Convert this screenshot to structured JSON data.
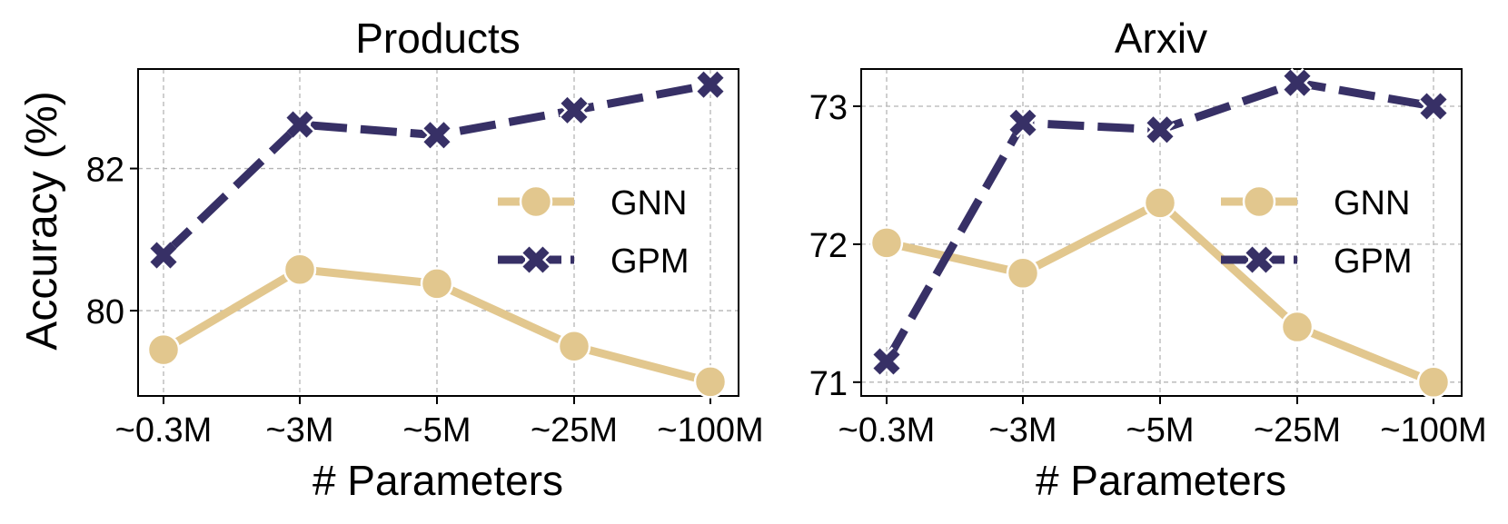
{
  "figure": {
    "ylabel": "Accuracy (%)"
  },
  "colors": {
    "gnn": "#e2c78e",
    "gpm": "#373066",
    "grid": "#b5b5b5",
    "axis": "#000000"
  },
  "chart_data": [
    {
      "type": "line",
      "title": "Products",
      "xlabel": "# Parameters",
      "ylabel": "Accuracy (%)",
      "categories": [
        "~0.3M",
        "~3M",
        "~5M",
        "~25M",
        "~100M"
      ],
      "ylim": [
        78.8,
        83.4
      ],
      "yticks": [
        80,
        82
      ],
      "ytick_labels": [
        "80",
        "82"
      ],
      "grid": true,
      "legend": "center-right",
      "series": [
        {
          "name": "GNN",
          "marker": "circle",
          "linestyle": "solid",
          "values": [
            79.45,
            80.58,
            80.38,
            79.5,
            79.0
          ]
        },
        {
          "name": "GPM",
          "marker": "x",
          "linestyle": "dashed",
          "values": [
            80.78,
            82.62,
            82.47,
            82.82,
            83.18
          ]
        }
      ]
    },
    {
      "type": "line",
      "title": "Arxiv",
      "xlabel": "# Parameters",
      "ylabel": "",
      "categories": [
        "~0.3M",
        "~3M",
        "~5M",
        "~25M",
        "~100M"
      ],
      "ylim": [
        70.9,
        73.27
      ],
      "yticks": [
        71,
        72,
        73
      ],
      "ytick_labels": [
        "71",
        "72",
        "73"
      ],
      "grid": true,
      "legend": "center-right",
      "series": [
        {
          "name": "GNN",
          "marker": "circle",
          "linestyle": "solid",
          "values": [
            72.01,
            71.79,
            72.3,
            71.4,
            71.0
          ]
        },
        {
          "name": "GPM",
          "marker": "x",
          "linestyle": "dashed",
          "values": [
            71.15,
            72.88,
            72.83,
            73.17,
            73.0
          ]
        }
      ]
    }
  ]
}
